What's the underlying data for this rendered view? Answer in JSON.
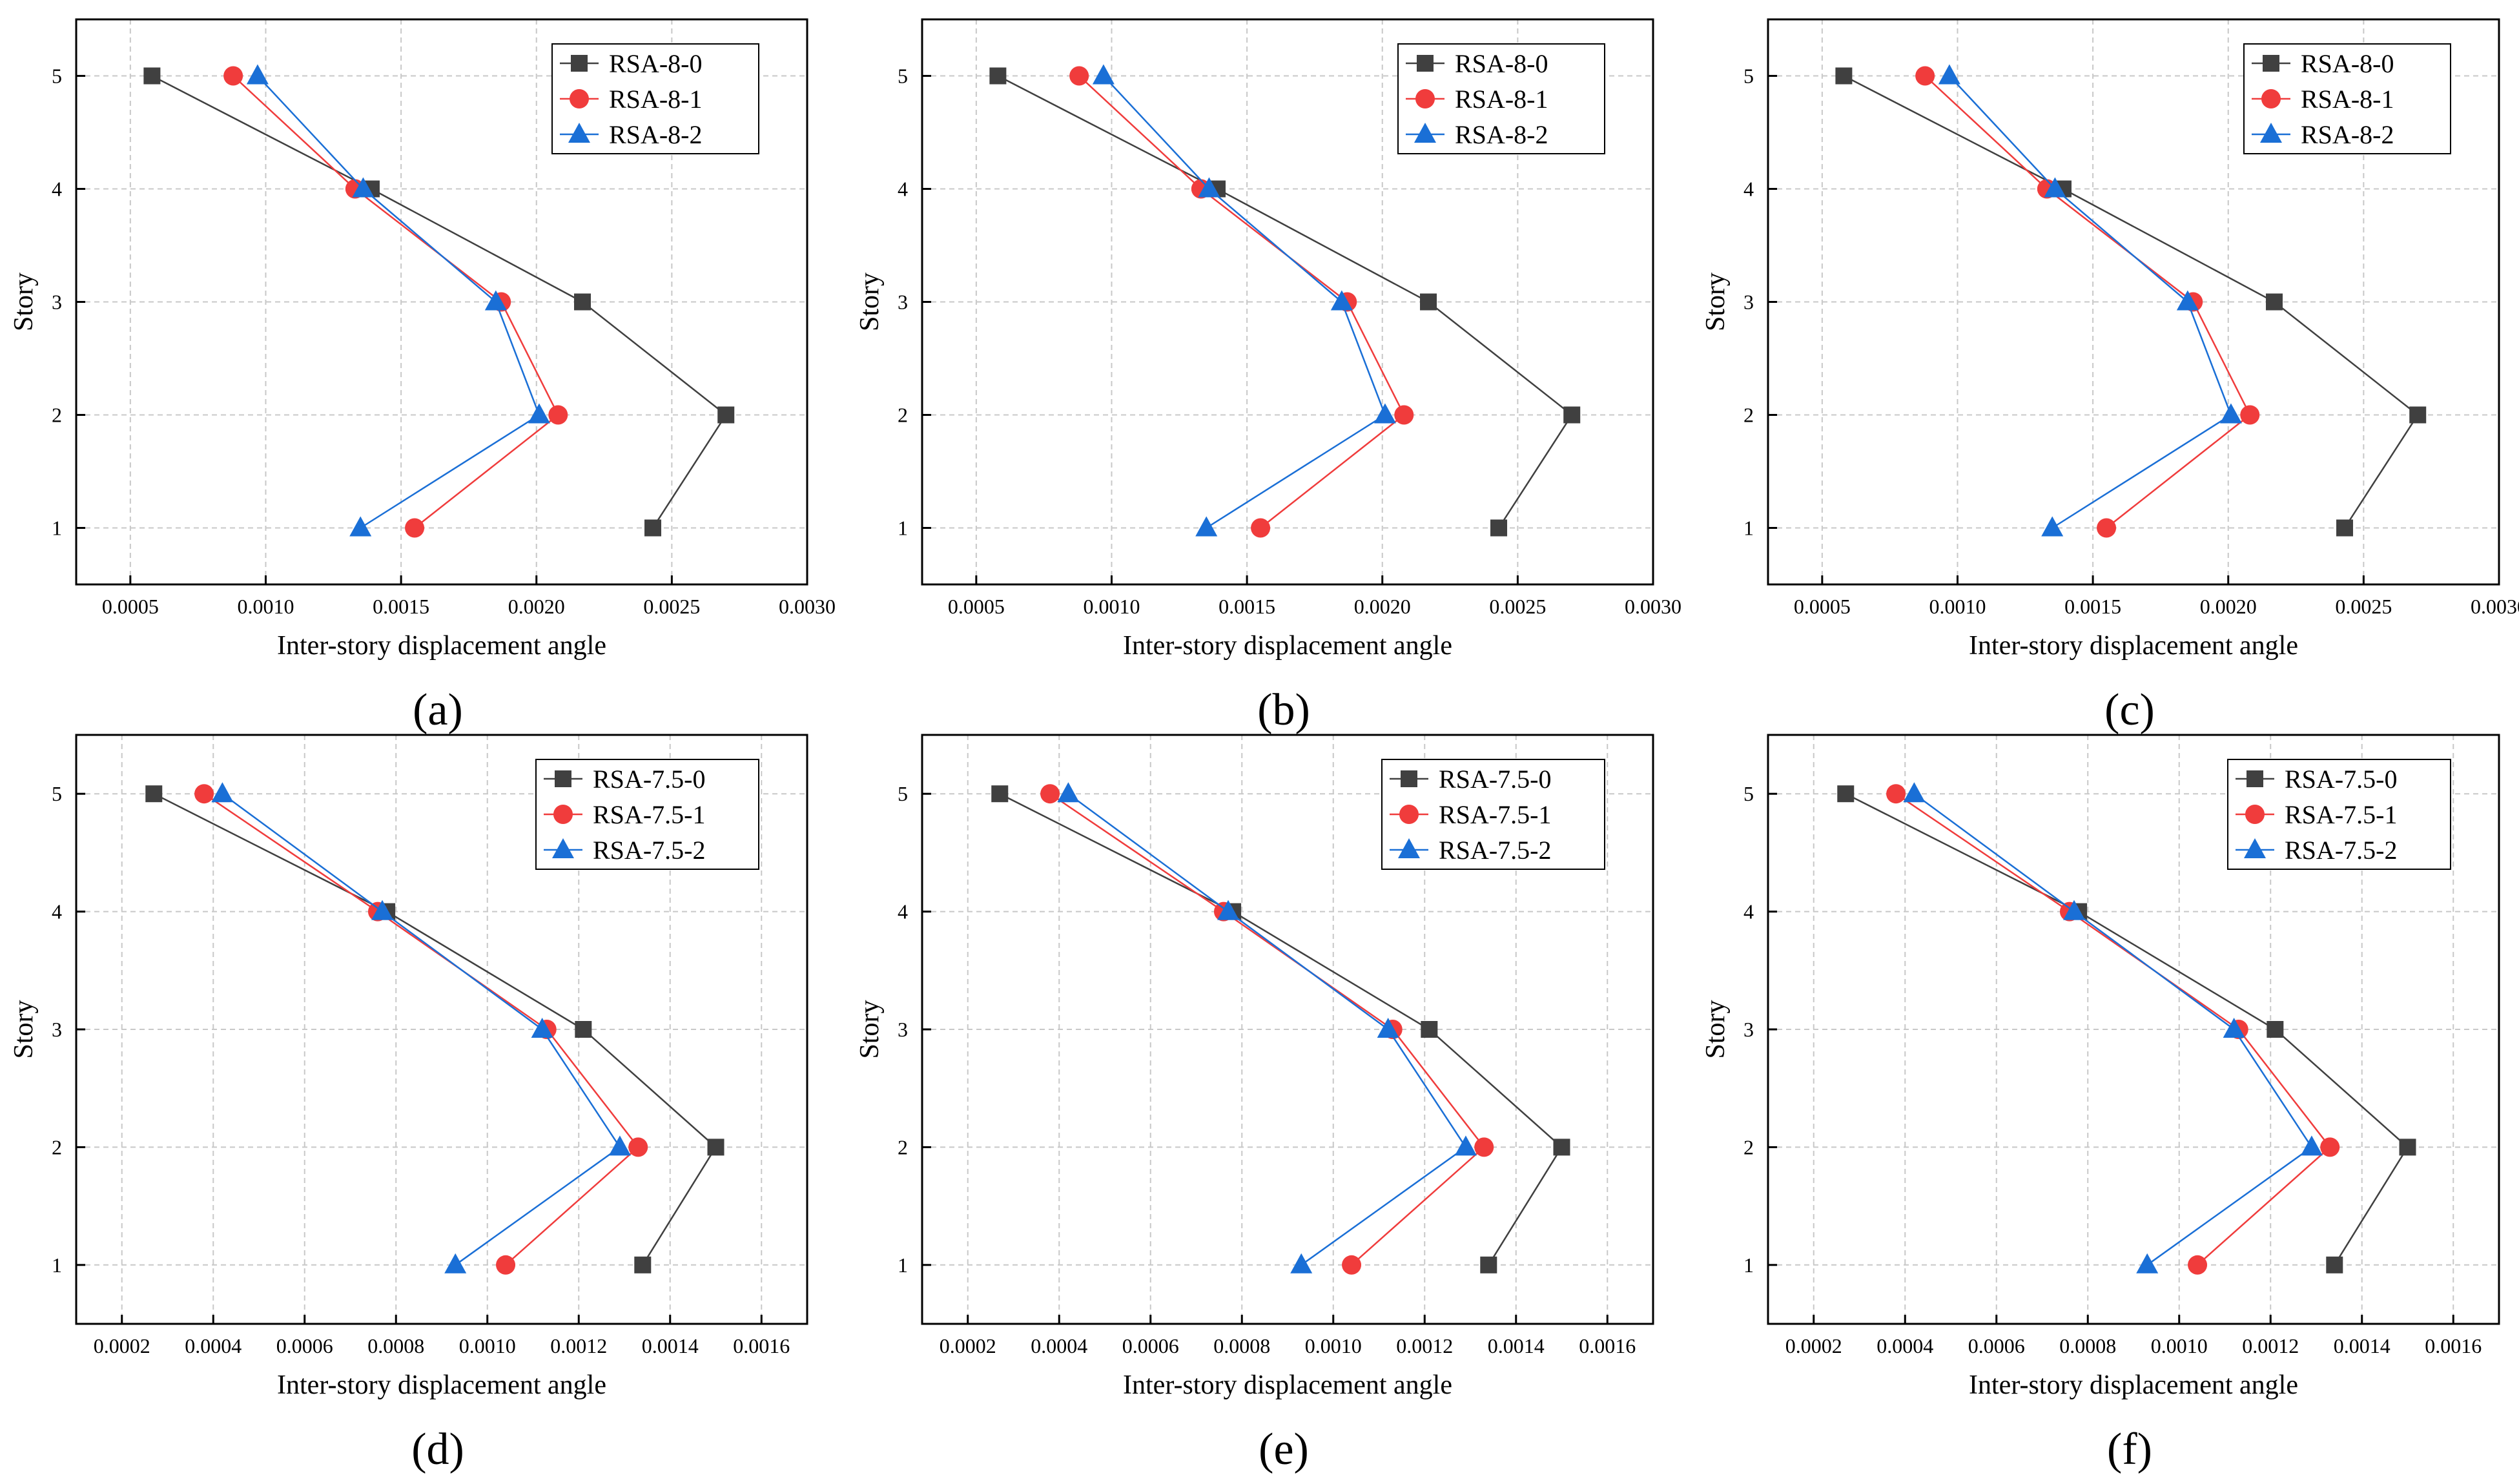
{
  "chart_data": [
    {
      "id": "a",
      "panel_label": "(a)",
      "type": "line",
      "xlabel": "Inter-story displacement angle",
      "ylabel": "Story",
      "xlim": [
        0.0003,
        0.003
      ],
      "ylim": [
        0.5,
        5.5
      ],
      "xticks": [
        "0.0005",
        "0.0010",
        "0.0015",
        "0.0020",
        "0.0025",
        "0.0030"
      ],
      "xtick_values": [
        0.0005,
        0.001,
        0.0015,
        0.002,
        0.0025,
        0.003
      ],
      "yticks": [
        "1",
        "2",
        "3",
        "4",
        "5"
      ],
      "ytick_values": [
        1,
        2,
        3,
        4,
        5
      ],
      "grid": true,
      "legend_position": "top-right",
      "series": [
        {
          "name": "RSA-8-0",
          "color": "#404040",
          "marker": "square",
          "story": [
            1,
            2,
            3,
            4,
            5
          ],
          "values": [
            0.00243,
            0.0027,
            0.00217,
            0.00139,
            0.00058
          ]
        },
        {
          "name": "RSA-8-1",
          "color": "#f03c3c",
          "marker": "circle",
          "story": [
            1,
            2,
            3,
            4,
            5
          ],
          "values": [
            0.00155,
            0.00208,
            0.00187,
            0.00133,
            0.00088
          ]
        },
        {
          "name": "RSA-8-2",
          "color": "#1a6fd6",
          "marker": "triangle",
          "story": [
            1,
            2,
            3,
            4,
            5
          ],
          "values": [
            0.00135,
            0.00201,
            0.00185,
            0.00136,
            0.00097
          ]
        }
      ]
    },
    {
      "id": "b",
      "panel_label": "(b)",
      "type": "line",
      "xlabel": "Inter-story displacement angle",
      "ylabel": "Story",
      "xlim": [
        0.0003,
        0.003
      ],
      "ylim": [
        0.5,
        5.5
      ],
      "xticks": [
        "0.0005",
        "0.0010",
        "0.0015",
        "0.0020",
        "0.0025",
        "0.0030"
      ],
      "xtick_values": [
        0.0005,
        0.001,
        0.0015,
        0.002,
        0.0025,
        0.003
      ],
      "yticks": [
        "1",
        "2",
        "3",
        "4",
        "5"
      ],
      "ytick_values": [
        1,
        2,
        3,
        4,
        5
      ],
      "grid": true,
      "legend_position": "top-right",
      "series": [
        {
          "name": "RSA-8-0",
          "color": "#404040",
          "marker": "square",
          "story": [
            1,
            2,
            3,
            4,
            5
          ],
          "values": [
            0.00243,
            0.0027,
            0.00217,
            0.00139,
            0.00058
          ]
        },
        {
          "name": "RSA-8-1",
          "color": "#f03c3c",
          "marker": "circle",
          "story": [
            1,
            2,
            3,
            4,
            5
          ],
          "values": [
            0.00155,
            0.00208,
            0.00187,
            0.00133,
            0.00088
          ]
        },
        {
          "name": "RSA-8-2",
          "color": "#1a6fd6",
          "marker": "triangle",
          "story": [
            1,
            2,
            3,
            4,
            5
          ],
          "values": [
            0.00135,
            0.00201,
            0.00185,
            0.00136,
            0.00097
          ]
        }
      ]
    },
    {
      "id": "c",
      "panel_label": "(c)",
      "type": "line",
      "xlabel": "Inter-story displacement angle",
      "ylabel": "Story",
      "xlim": [
        0.0003,
        0.003
      ],
      "ylim": [
        0.5,
        5.5
      ],
      "xticks": [
        "0.0005",
        "0.0010",
        "0.0015",
        "0.0020",
        "0.0025",
        "0.0030"
      ],
      "xtick_values": [
        0.0005,
        0.001,
        0.0015,
        0.002,
        0.0025,
        0.003
      ],
      "yticks": [
        "1",
        "2",
        "3",
        "4",
        "5"
      ],
      "ytick_values": [
        1,
        2,
        3,
        4,
        5
      ],
      "grid": true,
      "legend_position": "top-right",
      "series": [
        {
          "name": "RSA-8-0",
          "color": "#404040",
          "marker": "square",
          "story": [
            1,
            2,
            3,
            4,
            5
          ],
          "values": [
            0.00243,
            0.0027,
            0.00217,
            0.00139,
            0.00058
          ]
        },
        {
          "name": "RSA-8-1",
          "color": "#f03c3c",
          "marker": "circle",
          "story": [
            1,
            2,
            3,
            4,
            5
          ],
          "values": [
            0.00155,
            0.00208,
            0.00187,
            0.00133,
            0.00088
          ]
        },
        {
          "name": "RSA-8-2",
          "color": "#1a6fd6",
          "marker": "triangle",
          "story": [
            1,
            2,
            3,
            4,
            5
          ],
          "values": [
            0.00135,
            0.00201,
            0.00185,
            0.00136,
            0.00097
          ]
        }
      ]
    },
    {
      "id": "d",
      "panel_label": "(d)",
      "type": "line",
      "xlabel": "Inter-story displacement angle",
      "ylabel": "Story",
      "xlim": [
        0.0001,
        0.0017
      ],
      "ylim": [
        0.5,
        5.5
      ],
      "xticks": [
        "0.0002",
        "0.0004",
        "0.0006",
        "0.0008",
        "0.0010",
        "0.0012",
        "0.0014",
        "0.0016"
      ],
      "xtick_values": [
        0.0002,
        0.0004,
        0.0006,
        0.0008,
        0.001,
        0.0012,
        0.0014,
        0.0016
      ],
      "yticks": [
        "1",
        "2",
        "3",
        "4",
        "5"
      ],
      "ytick_values": [
        1,
        2,
        3,
        4,
        5
      ],
      "grid": true,
      "legend_position": "top-right",
      "series": [
        {
          "name": "RSA-7.5-0",
          "color": "#404040",
          "marker": "square",
          "story": [
            1,
            2,
            3,
            4,
            5
          ],
          "values": [
            0.00134,
            0.0015,
            0.00121,
            0.00078,
            0.00027
          ]
        },
        {
          "name": "RSA-7.5-1",
          "color": "#f03c3c",
          "marker": "circle",
          "story": [
            1,
            2,
            3,
            4,
            5
          ],
          "values": [
            0.00104,
            0.00133,
            0.00113,
            0.00076,
            0.00038
          ]
        },
        {
          "name": "RSA-7.5-2",
          "color": "#1a6fd6",
          "marker": "triangle",
          "story": [
            1,
            2,
            3,
            4,
            5
          ],
          "values": [
            0.00093,
            0.00129,
            0.00112,
            0.00077,
            0.00042
          ]
        }
      ]
    },
    {
      "id": "e",
      "panel_label": "(e)",
      "type": "line",
      "xlabel": "Inter-story displacement angle",
      "ylabel": "Story",
      "xlim": [
        0.0001,
        0.0017
      ],
      "ylim": [
        0.5,
        5.5
      ],
      "xticks": [
        "0.0002",
        "0.0004",
        "0.0006",
        "0.0008",
        "0.0010",
        "0.0012",
        "0.0014",
        "0.0016"
      ],
      "xtick_values": [
        0.0002,
        0.0004,
        0.0006,
        0.0008,
        0.001,
        0.0012,
        0.0014,
        0.0016
      ],
      "yticks": [
        "1",
        "2",
        "3",
        "4",
        "5"
      ],
      "ytick_values": [
        1,
        2,
        3,
        4,
        5
      ],
      "grid": true,
      "legend_position": "top-right",
      "series": [
        {
          "name": "RSA-7.5-0",
          "color": "#404040",
          "marker": "square",
          "story": [
            1,
            2,
            3,
            4,
            5
          ],
          "values": [
            0.00134,
            0.0015,
            0.00121,
            0.00078,
            0.00027
          ]
        },
        {
          "name": "RSA-7.5-1",
          "color": "#f03c3c",
          "marker": "circle",
          "story": [
            1,
            2,
            3,
            4,
            5
          ],
          "values": [
            0.00104,
            0.00133,
            0.00113,
            0.00076,
            0.00038
          ]
        },
        {
          "name": "RSA-7.5-2",
          "color": "#1a6fd6",
          "marker": "triangle",
          "story": [
            1,
            2,
            3,
            4,
            5
          ],
          "values": [
            0.00093,
            0.00129,
            0.00112,
            0.00077,
            0.00042
          ]
        }
      ]
    },
    {
      "id": "f",
      "panel_label": "(f)",
      "type": "line",
      "xlabel": "Inter-story displacement angle",
      "ylabel": "Story",
      "xlim": [
        0.0001,
        0.0017
      ],
      "ylim": [
        0.5,
        5.5
      ],
      "xticks": [
        "0.0002",
        "0.0004",
        "0.0006",
        "0.0008",
        "0.0010",
        "0.0012",
        "0.0014",
        "0.0016"
      ],
      "xtick_values": [
        0.0002,
        0.0004,
        0.0006,
        0.0008,
        0.001,
        0.0012,
        0.0014,
        0.0016
      ],
      "yticks": [
        "1",
        "2",
        "3",
        "4",
        "5"
      ],
      "ytick_values": [
        1,
        2,
        3,
        4,
        5
      ],
      "grid": true,
      "legend_position": "top-right",
      "series": [
        {
          "name": "RSA-7.5-0",
          "color": "#404040",
          "marker": "square",
          "story": [
            1,
            2,
            3,
            4,
            5
          ],
          "values": [
            0.00134,
            0.0015,
            0.00121,
            0.00078,
            0.00027
          ]
        },
        {
          "name": "RSA-7.5-1",
          "color": "#f03c3c",
          "marker": "circle",
          "story": [
            1,
            2,
            3,
            4,
            5
          ],
          "values": [
            0.00104,
            0.00133,
            0.00113,
            0.00076,
            0.00038
          ]
        },
        {
          "name": "RSA-7.5-2",
          "color": "#1a6fd6",
          "marker": "triangle",
          "story": [
            1,
            2,
            3,
            4,
            5
          ],
          "values": [
            0.00093,
            0.00129,
            0.00112,
            0.00077,
            0.00042
          ]
        }
      ]
    }
  ]
}
